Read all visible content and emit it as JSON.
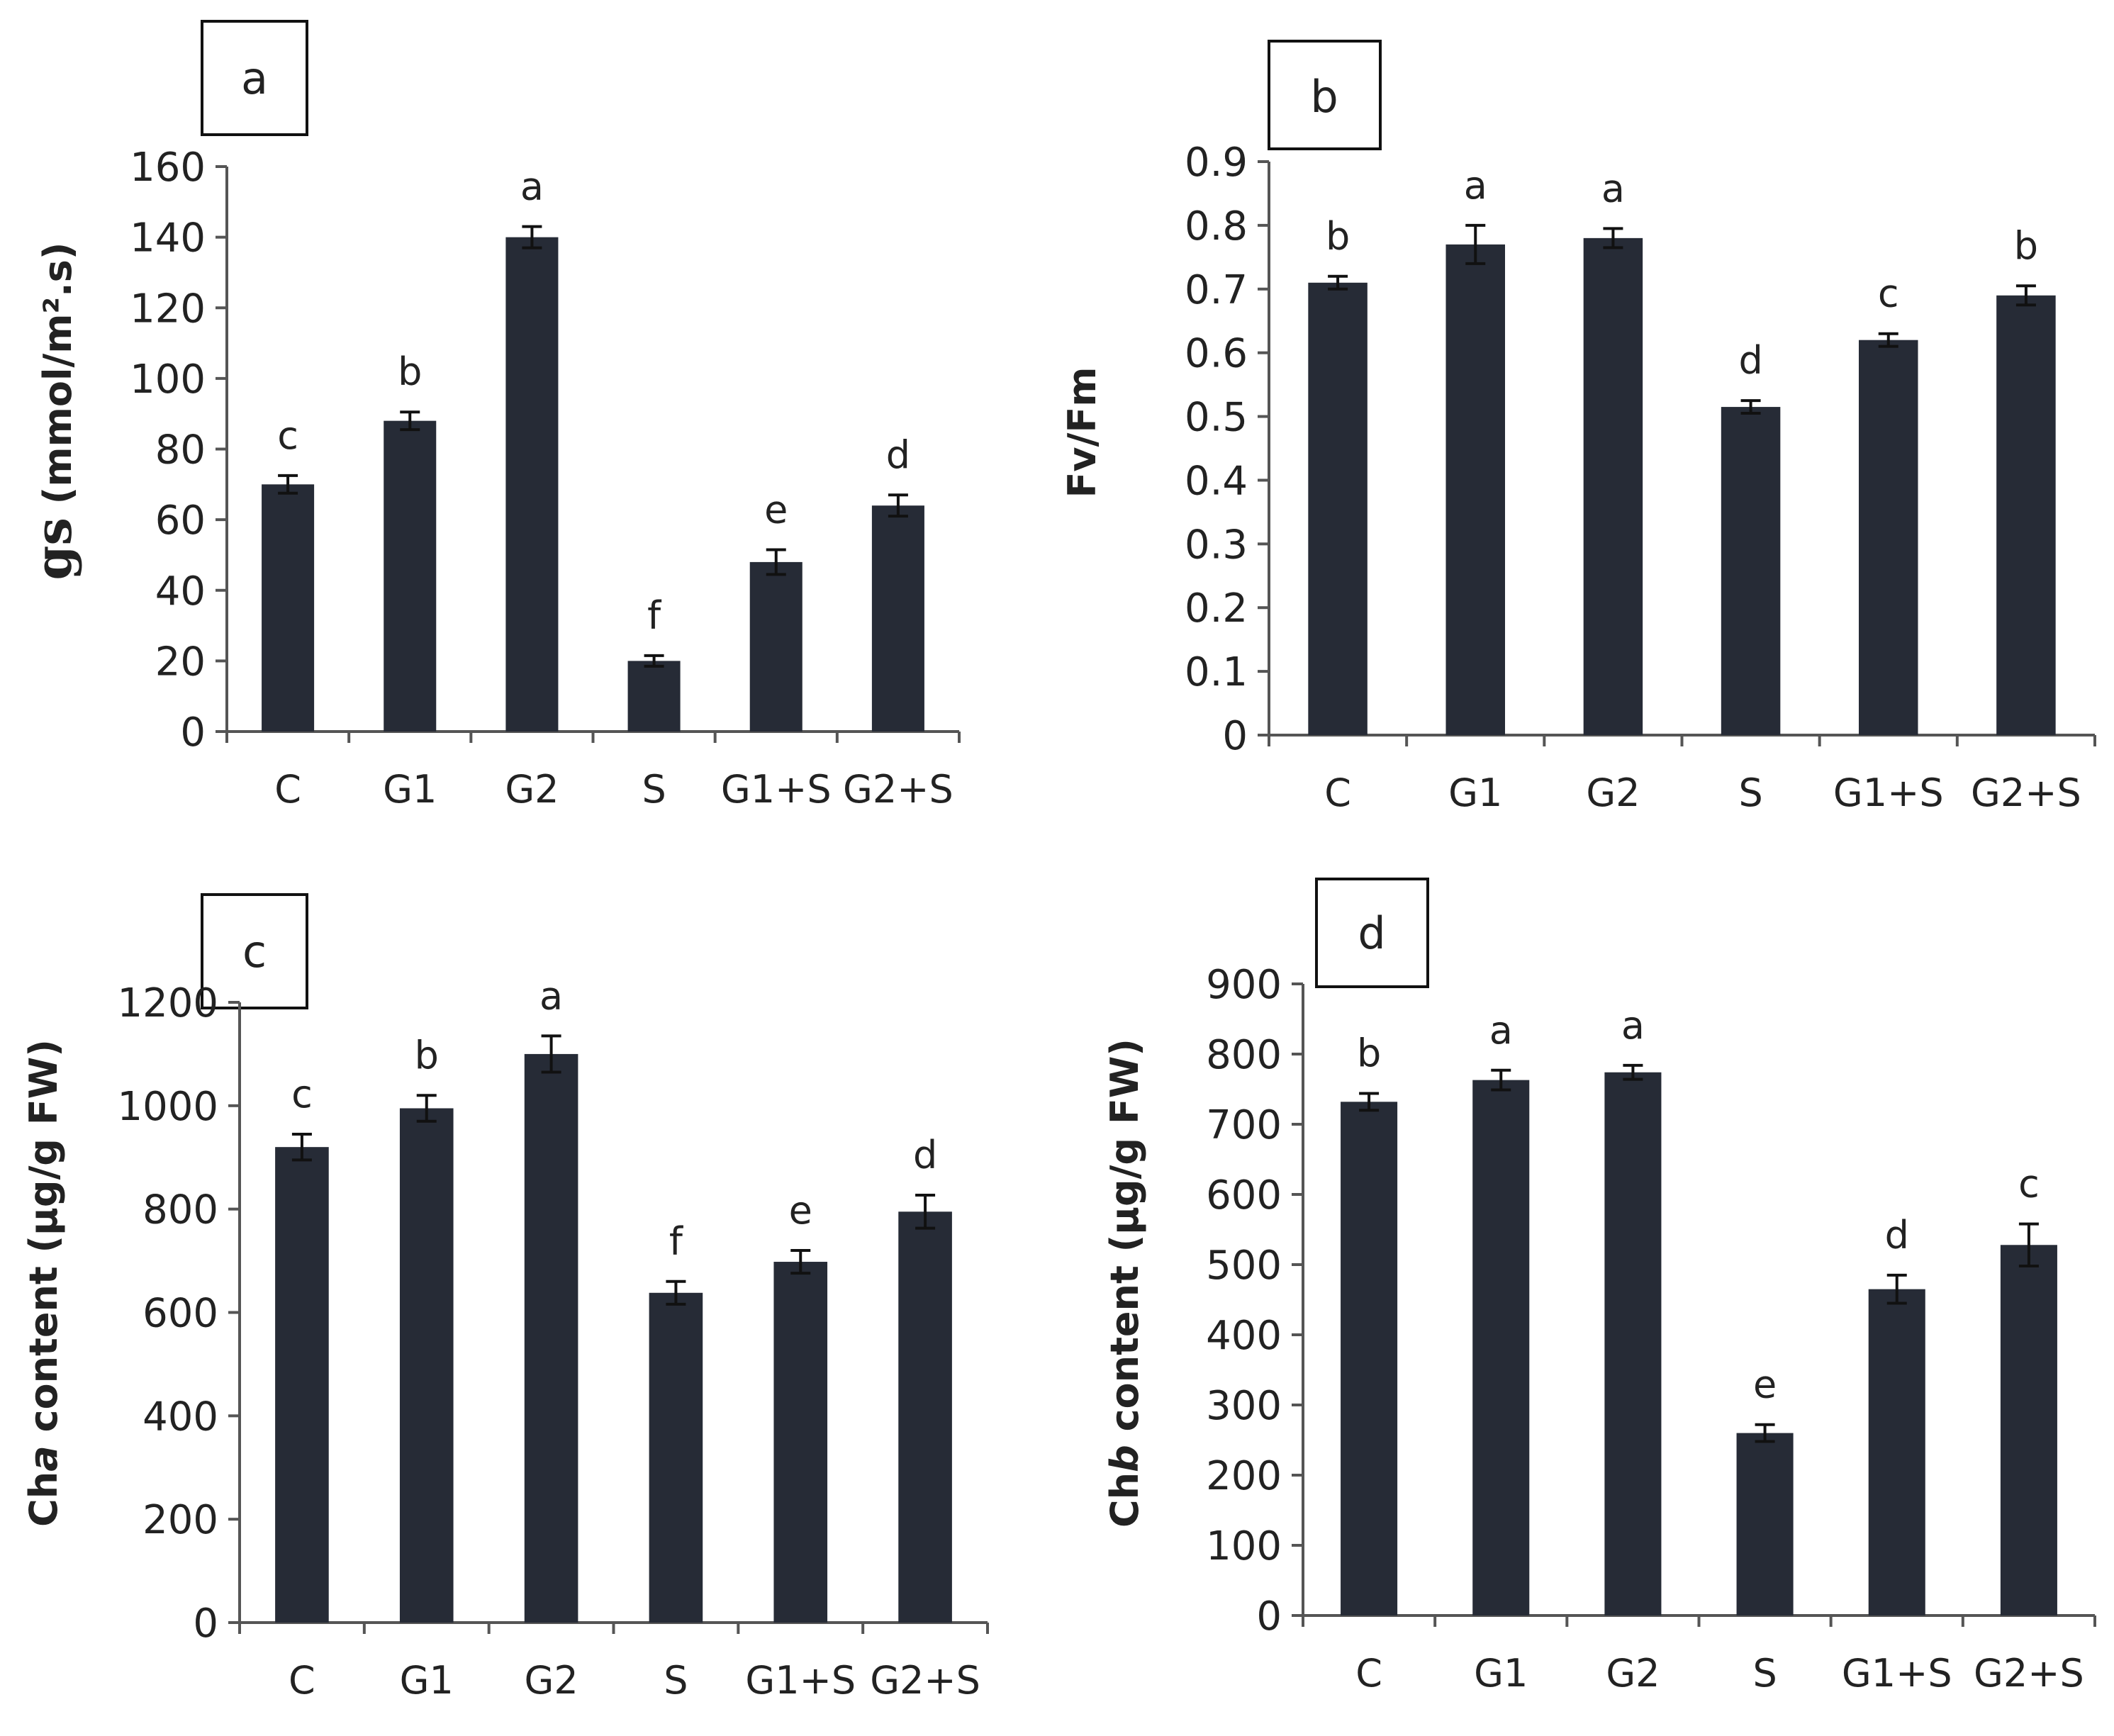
{
  "colors": {
    "bar": "#262b36",
    "axis": "#555555",
    "text": "#222222"
  },
  "chart_data": [
    {
      "type": "bar",
      "panel": "a",
      "categories": [
        "C",
        "G1",
        "G2",
        "S",
        "G1+S",
        "G2+S"
      ],
      "values": [
        70,
        88,
        140,
        20,
        48,
        64
      ],
      "errors": [
        2.5,
        2.5,
        3,
        1.5,
        3.5,
        3
      ],
      "letters": [
        "c",
        "b",
        "a",
        "f",
        "e",
        "d"
      ],
      "ylabel_main": "gs",
      "ylabel_sub": " (mmol/m².s)",
      "ylim": [
        0,
        160
      ],
      "yticks": [
        0,
        20,
        40,
        60,
        80,
        100,
        120,
        140,
        160
      ],
      "ytick_labels": [
        "0",
        "20",
        "40",
        "60",
        "80",
        "100",
        "120",
        "140",
        "160"
      ]
    },
    {
      "type": "bar",
      "panel": "b",
      "categories": [
        "C",
        "G1",
        "G2",
        "S",
        "G1+S",
        "G2+S"
      ],
      "values": [
        0.71,
        0.77,
        0.78,
        0.515,
        0.62,
        0.69
      ],
      "errors": [
        0.01,
        0.03,
        0.015,
        0.01,
        0.01,
        0.015
      ],
      "letters": [
        "b",
        "a",
        "a",
        "d",
        "c",
        "b"
      ],
      "ylabel": "Fv/Fm",
      "ylim": [
        0,
        0.9
      ],
      "yticks": [
        0,
        0.1,
        0.2,
        0.3,
        0.4,
        0.5,
        0.6,
        0.7,
        0.8,
        0.9
      ],
      "ytick_labels": [
        "0",
        "0.1",
        "0.2",
        "0.3",
        "0.4",
        "0.5",
        "0.6",
        "0.7",
        "0.8",
        "0.9"
      ]
    },
    {
      "type": "bar",
      "panel": "c",
      "categories": [
        "C",
        "G1",
        "G2",
        "S",
        "G1+S",
        "G2+S"
      ],
      "values": [
        920,
        995,
        1100,
        638,
        698,
        795
      ],
      "errors": [
        25,
        25,
        35,
        22,
        22,
        32
      ],
      "letters": [
        "c",
        "b",
        "a",
        "f",
        "e",
        "d"
      ],
      "ylabel_pre": "Ch",
      "ylabel_ital": "a",
      "ylabel_post": "  content (µg/g FW)",
      "ylim": [
        0,
        1200
      ],
      "yticks": [
        0,
        200,
        400,
        600,
        800,
        1000,
        1200
      ],
      "ytick_labels": [
        "0",
        "200",
        "400",
        "600",
        "800",
        "1000",
        "1200"
      ]
    },
    {
      "type": "bar",
      "panel": "d",
      "categories": [
        "C",
        "G1",
        "G2",
        "S",
        "G1+S",
        "G2+S"
      ],
      "values": [
        732,
        763,
        774,
        260,
        465,
        528
      ],
      "errors": [
        12,
        14,
        10,
        12,
        20,
        30
      ],
      "letters": [
        "b",
        "a",
        "a",
        "e",
        "d",
        "c"
      ],
      "ylabel_pre": "Ch",
      "ylabel_ital": "b",
      "ylabel_post": " content (µg/g FW)",
      "ylim": [
        0,
        900
      ],
      "yticks": [
        0,
        100,
        200,
        300,
        400,
        500,
        600,
        700,
        800,
        900
      ],
      "ytick_labels": [
        "0",
        "100",
        "200",
        "300",
        "400",
        "500",
        "600",
        "700",
        "800",
        "900"
      ]
    }
  ]
}
